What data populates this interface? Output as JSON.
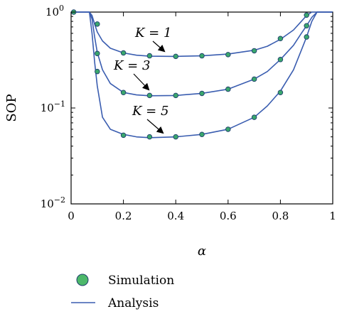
{
  "chart_data": {
    "type": "line",
    "title": "",
    "xlabel": "α",
    "ylabel": "SOP",
    "xlim": [
      0,
      1
    ],
    "ylim": [
      0.01,
      1
    ],
    "yscale": "log",
    "x_ticks": [
      0,
      0.2,
      0.4,
      0.6,
      0.8,
      1
    ],
    "x_tick_labels": [
      "0",
      "0.2",
      "0.4",
      "0.6",
      "0.8",
      "1"
    ],
    "y_ticks": [
      1,
      0.1,
      0.01
    ],
    "y_tick_labels": [
      {
        "base": "10",
        "exp": "0"
      },
      {
        "base": "10",
        "exp": "−1"
      },
      {
        "base": "10",
        "exp": "−2"
      }
    ],
    "grid": false,
    "legend": {
      "placement": "below",
      "entries": [
        {
          "label": "Simulation",
          "marker": "circle"
        },
        {
          "label": "Analysis",
          "marker": "line"
        }
      ]
    },
    "colors": {
      "line": "#3a5db0",
      "marker_fill": "#3aa76d",
      "marker_edge": "#1f3f6d",
      "legend_marker_fill": "#4cb86a"
    },
    "series": [
      {
        "curve": [
          [
            0.01,
            1
          ],
          [
            0.07,
            1
          ],
          [
            0.08,
            0.92
          ],
          [
            0.09,
            0.75
          ],
          [
            0.1,
            0.62
          ],
          [
            0.12,
            0.5
          ],
          [
            0.15,
            0.42
          ],
          [
            0.2,
            0.375
          ],
          [
            0.25,
            0.355
          ],
          [
            0.3,
            0.347
          ],
          [
            0.4,
            0.345
          ],
          [
            0.5,
            0.35
          ],
          [
            0.6,
            0.365
          ],
          [
            0.7,
            0.4
          ],
          [
            0.75,
            0.44
          ],
          [
            0.8,
            0.52
          ],
          [
            0.85,
            0.65
          ],
          [
            0.88,
            0.8
          ],
          [
            0.9,
            0.92
          ],
          [
            0.92,
            1
          ],
          [
            1,
            1
          ]
        ],
        "markers": [
          [
            0.01,
            1
          ],
          [
            0.1,
            0.75
          ],
          [
            0.2,
            0.375
          ],
          [
            0.3,
            0.35
          ],
          [
            0.4,
            0.345
          ],
          [
            0.5,
            0.35
          ],
          [
            0.6,
            0.36
          ],
          [
            0.7,
            0.395
          ],
          [
            0.8,
            0.53
          ],
          [
            0.9,
            0.93
          ]
        ]
      },
      {
        "curve": [
          [
            0.01,
            1
          ],
          [
            0.07,
            1
          ],
          [
            0.08,
            0.85
          ],
          [
            0.09,
            0.55
          ],
          [
            0.1,
            0.38
          ],
          [
            0.12,
            0.25
          ],
          [
            0.15,
            0.18
          ],
          [
            0.2,
            0.145
          ],
          [
            0.25,
            0.137
          ],
          [
            0.3,
            0.134
          ],
          [
            0.4,
            0.135
          ],
          [
            0.5,
            0.142
          ],
          [
            0.6,
            0.157
          ],
          [
            0.7,
            0.2
          ],
          [
            0.75,
            0.24
          ],
          [
            0.8,
            0.32
          ],
          [
            0.85,
            0.45
          ],
          [
            0.88,
            0.6
          ],
          [
            0.9,
            0.72
          ],
          [
            0.92,
            0.88
          ],
          [
            0.94,
            1
          ],
          [
            1,
            1
          ]
        ],
        "markers": [
          [
            0.1,
            0.37
          ],
          [
            0.2,
            0.145
          ],
          [
            0.3,
            0.135
          ],
          [
            0.4,
            0.135
          ],
          [
            0.5,
            0.142
          ],
          [
            0.6,
            0.157
          ],
          [
            0.7,
            0.2
          ],
          [
            0.8,
            0.32
          ],
          [
            0.9,
            0.72
          ]
        ]
      },
      {
        "curve": [
          [
            0.01,
            1
          ],
          [
            0.07,
            1
          ],
          [
            0.08,
            0.6
          ],
          [
            0.09,
            0.3
          ],
          [
            0.1,
            0.17
          ],
          [
            0.12,
            0.08
          ],
          [
            0.15,
            0.06
          ],
          [
            0.2,
            0.053
          ],
          [
            0.25,
            0.05
          ],
          [
            0.3,
            0.049
          ],
          [
            0.4,
            0.05
          ],
          [
            0.5,
            0.053
          ],
          [
            0.6,
            0.06
          ],
          [
            0.7,
            0.08
          ],
          [
            0.75,
            0.105
          ],
          [
            0.8,
            0.15
          ],
          [
            0.85,
            0.25
          ],
          [
            0.88,
            0.4
          ],
          [
            0.9,
            0.55
          ],
          [
            0.92,
            0.8
          ],
          [
            0.94,
            1
          ],
          [
            1,
            1
          ]
        ],
        "markers": [
          [
            0.1,
            0.24
          ],
          [
            0.2,
            0.052
          ],
          [
            0.3,
            0.05
          ],
          [
            0.4,
            0.05
          ],
          [
            0.5,
            0.053
          ],
          [
            0.6,
            0.06
          ],
          [
            0.7,
            0.08
          ],
          [
            0.8,
            0.145
          ],
          [
            0.9,
            0.55
          ]
        ]
      }
    ],
    "annotations": [
      {
        "text": "K = 1",
        "arrow_target": [
          0.35,
          0.35
        ]
      },
      {
        "text": "K = 3",
        "arrow_target": [
          0.3,
          0.135
        ]
      },
      {
        "text": "K = 5",
        "arrow_target": [
          0.35,
          0.05
        ]
      }
    ]
  }
}
